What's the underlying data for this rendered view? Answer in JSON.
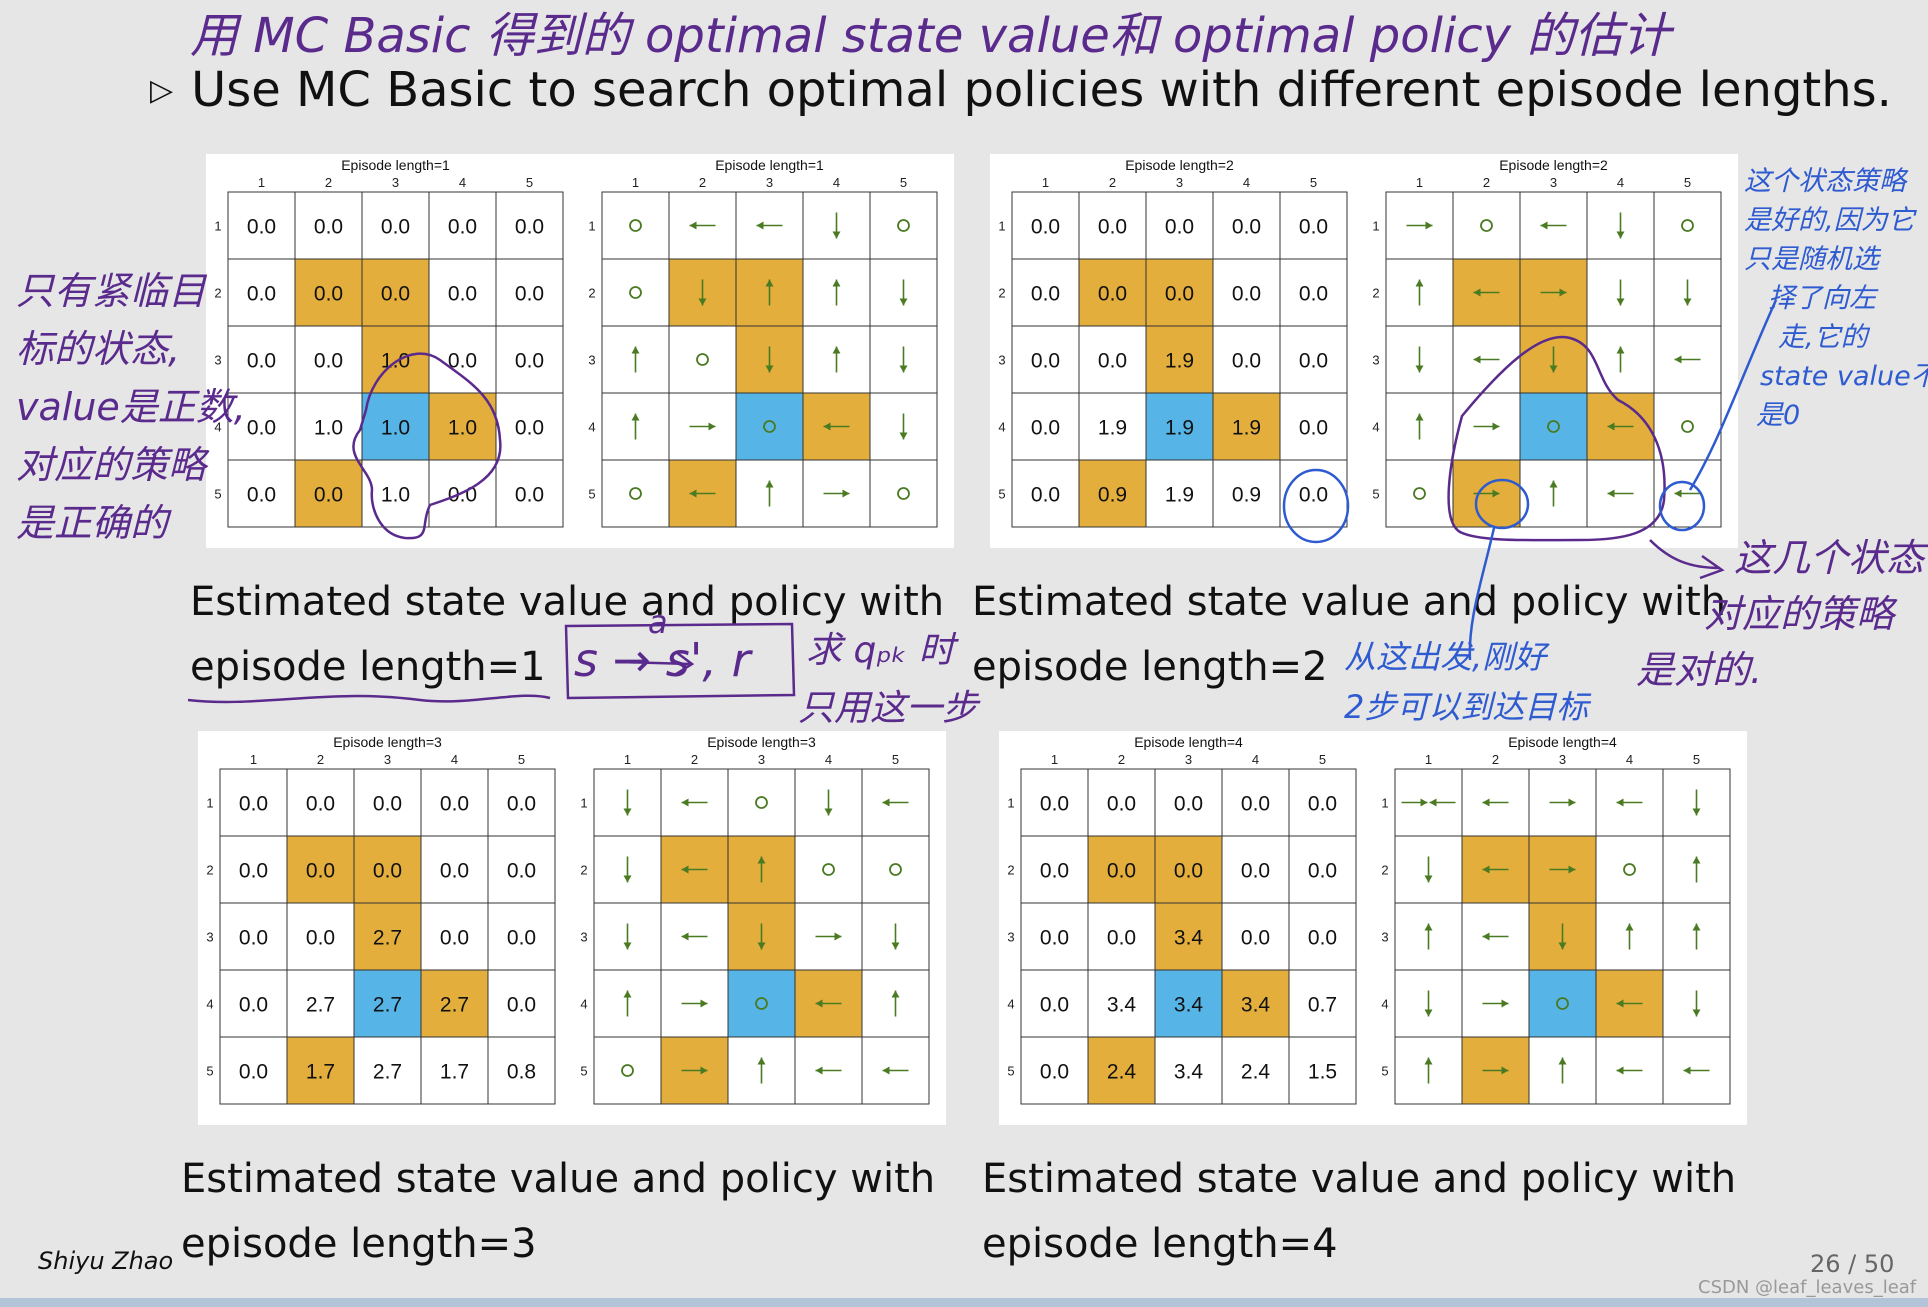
{
  "handwriting": {
    "title": "用 MC Basic 得到的 optimal state value和 optimal policy 的估计",
    "left_note": [
      "只有紧临目",
      "标的状态,",
      "value是正数,",
      "对应的策略",
      "是正确的"
    ],
    "mid_note": [
      "求 qₚₖ 时",
      "只用这一步"
    ],
    "formula": "s → s', r",
    "formula_a": "a",
    "right_top_note": [
      "这个状态策略",
      "是好的,因为它",
      "只是随机选",
      "择了向左",
      "走,它的",
      "state value不",
      "是0"
    ],
    "right_mid_note": [
      "这几个状态",
      "对应的策略",
      "是对的."
    ],
    "blue_mid_note": [
      "从这出发,刚好",
      "2步可以到达目标"
    ]
  },
  "headline": "Use MC Basic to search optimal policies with different episode lengths.",
  "bullet_icon": "triangle-bullet-icon",
  "colors": {
    "forbidden": "#E3AE3C",
    "target": "#56B4E6",
    "arrow": "#4A7A22",
    "grid": "#333333"
  },
  "panels": [
    {
      "caption": [
        "Estimated state value and policy with",
        "episode length=1"
      ],
      "value_grid": {
        "title": "Episode length=1",
        "values": [
          [
            "0.0",
            "0.0",
            "0.0",
            "0.0",
            "0.0"
          ],
          [
            "0.0",
            "0.0",
            "0.0",
            "0.0",
            "0.0"
          ],
          [
            "0.0",
            "0.0",
            "1.0",
            "0.0",
            "0.0"
          ],
          [
            "0.0",
            "1.0",
            "1.0",
            "1.0",
            "0.0"
          ],
          [
            "0.0",
            "0.0",
            "1.0",
            "0.0",
            "0.0"
          ]
        ]
      },
      "policy_grid": {
        "title": "Episode length=1",
        "actions": [
          [
            "o",
            "l",
            "l",
            "d",
            "o"
          ],
          [
            "o",
            "d",
            "u",
            "u",
            "d"
          ],
          [
            "u",
            "o",
            "d",
            "u",
            "d"
          ],
          [
            "u",
            "r",
            "o",
            "l",
            "d"
          ],
          [
            "o",
            "l",
            "u",
            "r",
            "o"
          ]
        ]
      }
    },
    {
      "caption": [
        "Estimated state value and policy with",
        "episode length=2"
      ],
      "value_grid": {
        "title": "Episode length=2",
        "values": [
          [
            "0.0",
            "0.0",
            "0.0",
            "0.0",
            "0.0"
          ],
          [
            "0.0",
            "0.0",
            "0.0",
            "0.0",
            "0.0"
          ],
          [
            "0.0",
            "0.0",
            "1.9",
            "0.0",
            "0.0"
          ],
          [
            "0.0",
            "1.9",
            "1.9",
            "1.9",
            "0.0"
          ],
          [
            "0.0",
            "0.9",
            "1.9",
            "0.9",
            "0.0"
          ]
        ]
      },
      "policy_grid": {
        "title": "Episode length=2",
        "actions": [
          [
            "r",
            "o",
            "l",
            "d",
            "o"
          ],
          [
            "u",
            "l",
            "r",
            "d",
            "d"
          ],
          [
            "d",
            "l",
            "d",
            "u",
            "l"
          ],
          [
            "u",
            "r",
            "o",
            "l",
            "o"
          ],
          [
            "o",
            "r",
            "u",
            "l",
            "l"
          ]
        ]
      }
    },
    {
      "caption": [
        "Estimated state value and policy with",
        "episode length=3"
      ],
      "value_grid": {
        "title": "Episode length=3",
        "values": [
          [
            "0.0",
            "0.0",
            "0.0",
            "0.0",
            "0.0"
          ],
          [
            "0.0",
            "0.0",
            "0.0",
            "0.0",
            "0.0"
          ],
          [
            "0.0",
            "0.0",
            "2.7",
            "0.0",
            "0.0"
          ],
          [
            "0.0",
            "2.7",
            "2.7",
            "2.7",
            "0.0"
          ],
          [
            "0.0",
            "1.7",
            "2.7",
            "1.7",
            "0.8"
          ]
        ]
      },
      "policy_grid": {
        "title": "Episode length=3",
        "actions": [
          [
            "d",
            "l",
            "o",
            "d",
            "l"
          ],
          [
            "d",
            "l",
            "u",
            "o",
            "o"
          ],
          [
            "d",
            "l",
            "d",
            "r",
            "d"
          ],
          [
            "u",
            "r",
            "o",
            "l",
            "u"
          ],
          [
            "o",
            "r",
            "u",
            "l",
            "l"
          ]
        ]
      }
    },
    {
      "caption": [
        "Estimated state value and policy with",
        "episode length=4"
      ],
      "value_grid": {
        "title": "Episode length=4",
        "values": [
          [
            "0.0",
            "0.0",
            "0.0",
            "0.0",
            "0.0"
          ],
          [
            "0.0",
            "0.0",
            "0.0",
            "0.0",
            "0.0"
          ],
          [
            "0.0",
            "0.0",
            "3.4",
            "0.0",
            "0.0"
          ],
          [
            "0.0",
            "3.4",
            "3.4",
            "3.4",
            "0.7"
          ],
          [
            "0.0",
            "2.4",
            "3.4",
            "2.4",
            "1.5"
          ]
        ]
      },
      "policy_grid": {
        "title": "Episode length=4",
        "actions": [
          [
            "rl",
            "l",
            "r",
            "l",
            "d"
          ],
          [
            "d",
            "l",
            "r",
            "o",
            "u"
          ],
          [
            "u",
            "l",
            "d",
            "u",
            "u"
          ],
          [
            "d",
            "r",
            "o",
            "l",
            "d"
          ],
          [
            "u",
            "r",
            "u",
            "l",
            "l"
          ]
        ]
      }
    }
  ],
  "col_labels": [
    "1",
    "2",
    "3",
    "4",
    "5"
  ],
  "row_labels": [
    "1",
    "2",
    "3",
    "4",
    "5"
  ],
  "author": "Shiyu Zhao",
  "page": "26 / 50",
  "watermark": "CSDN @leaf_leaves_leaf"
}
